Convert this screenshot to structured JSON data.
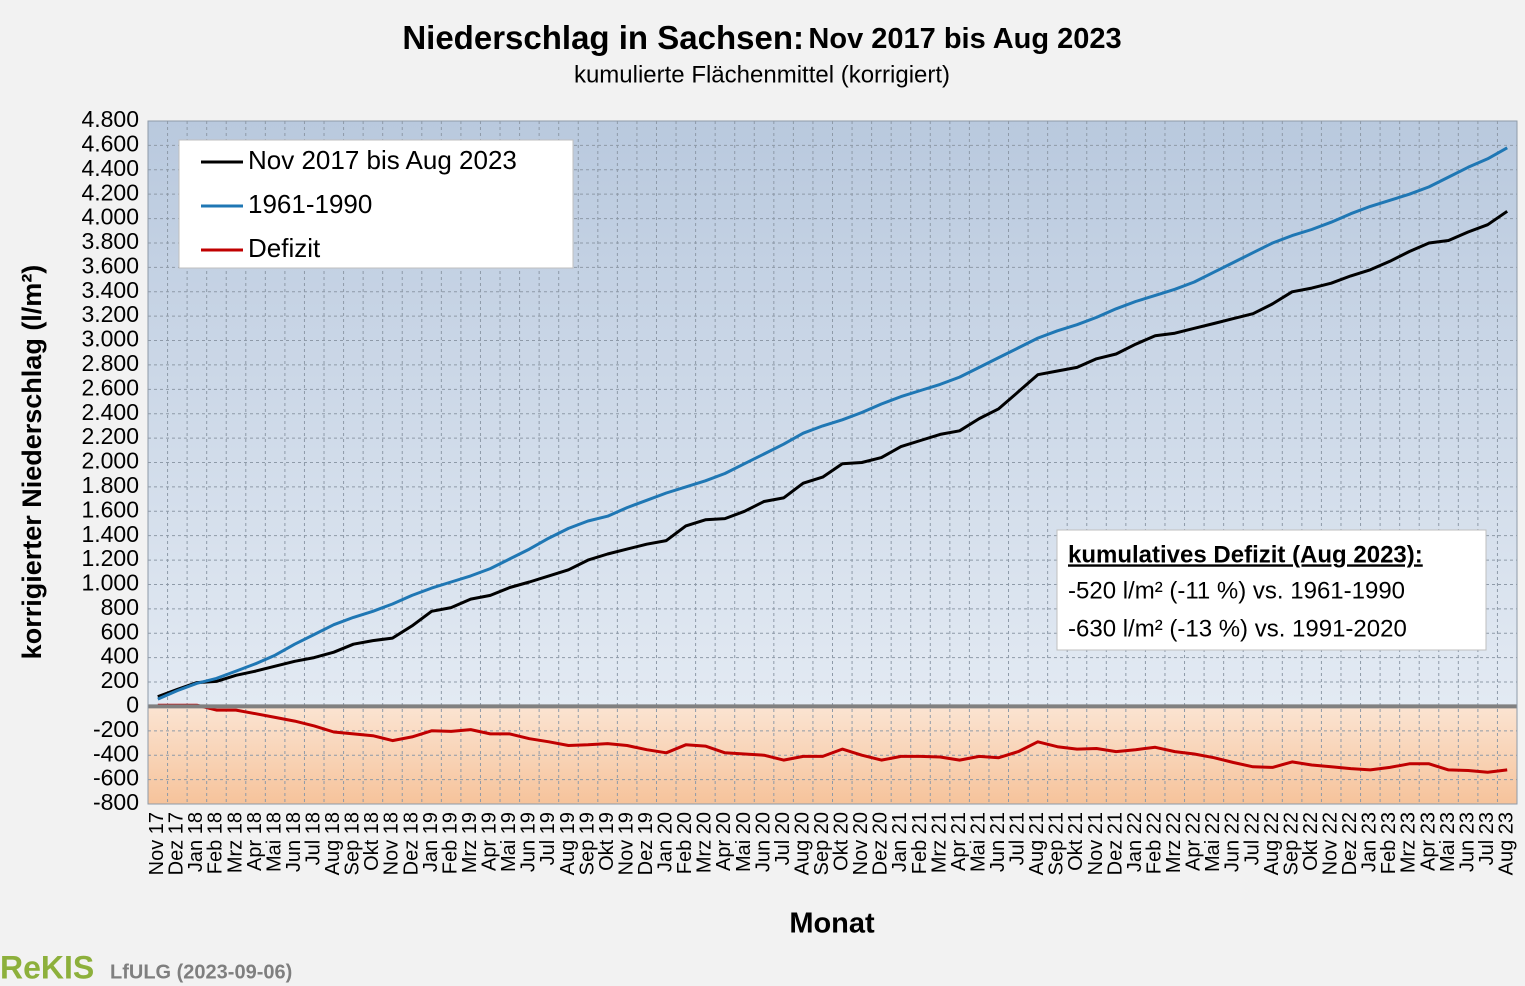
{
  "chart_data": {
    "type": "line",
    "title": "Niederschlag in Sachsen:",
    "title_period": "Nov 2017 bis Aug 2023",
    "subtitle": "kumulierte Flächenmittel (korrigiert)",
    "y_label": "korrigierter  Niederschlag  (l/m²)",
    "x_label": "Monat",
    "legend": "top-left",
    "grid": true,
    "categories": [
      "Nov 17",
      "Dez 17",
      "Jan 18",
      "Feb 18",
      "Mrz 18",
      "Apr 18",
      "Mai 18",
      "Jun 18",
      "Jul 18",
      "Aug 18",
      "Sep 18",
      "Okt 18",
      "Nov 18",
      "Dez 18",
      "Jan 19",
      "Feb 19",
      "Mrz 19",
      "Apr 19",
      "Mai 19",
      "Jun 19",
      "Jul 19",
      "Aug 19",
      "Sep 19",
      "Okt 19",
      "Nov 19",
      "Dez 19",
      "Jan 20",
      "Feb 20",
      "Mrz 20",
      "Apr 20",
      "Mai 20",
      "Jun 20",
      "Jul 20",
      "Aug 20",
      "Sep 20",
      "Okt 20",
      "Nov 20",
      "Dez 20",
      "Jan 21",
      "Feb 21",
      "Mrz 21",
      "Apr 21",
      "Mai 21",
      "Jun 21",
      "Jul 21",
      "Aug 21",
      "Sep 21",
      "Okt 21",
      "Nov 21",
      "Dez 21",
      "Jan 22",
      "Feb 22",
      "Mrz 22",
      "Apr 22",
      "Mai 22",
      "Jun 22",
      "Jul 22",
      "Aug 22",
      "Sep 22",
      "Okt 22",
      "Nov 22",
      "Dez 22",
      "Jan 23",
      "Feb 23",
      "Mrz 23",
      "Apr 23",
      "Mai 23",
      "Jun 23",
      "Jul 23",
      "Aug 23"
    ],
    "series": [
      {
        "name": "Nov 2017 bis Aug 2023",
        "color": "#000000",
        "values": [
          80,
          140,
          195,
          205,
          255,
          290,
          330,
          370,
          400,
          445,
          510,
          540,
          560,
          660,
          780,
          810,
          880,
          910,
          975,
          1020,
          1070,
          1120,
          1200,
          1250,
          1290,
          1330,
          1360,
          1480,
          1530,
          1540,
          1600,
          1680,
          1710,
          1830,
          1880,
          1990,
          2000,
          2040,
          2130,
          2180,
          2230,
          2260,
          2360,
          2440,
          2580,
          2720,
          2750,
          2780,
          2850,
          2890,
          2970,
          3040,
          3060,
          3100,
          3140,
          3180,
          3220,
          3300,
          3400,
          3430,
          3470,
          3530,
          3580,
          3650,
          3730,
          3800,
          3820,
          3890,
          3950,
          4060
        ]
      },
      {
        "name": "1961-1990",
        "color": "#1f77b4",
        "values": [
          60,
          130,
          190,
          230,
          290,
          350,
          420,
          510,
          590,
          670,
          730,
          780,
          840,
          910,
          970,
          1020,
          1070,
          1130,
          1210,
          1290,
          1380,
          1460,
          1520,
          1560,
          1630,
          1690,
          1750,
          1800,
          1850,
          1910,
          1990,
          2070,
          2150,
          2240,
          2300,
          2350,
          2410,
          2480,
          2540,
          2590,
          2640,
          2700,
          2780,
          2860,
          2940,
          3020,
          3080,
          3130,
          3190,
          3260,
          3320,
          3370,
          3420,
          3480,
          3560,
          3640,
          3720,
          3800,
          3860,
          3910,
          3970,
          4040,
          4100,
          4150,
          4200,
          4260,
          4340,
          4420,
          4490,
          4580
        ]
      },
      {
        "name": "Defizit",
        "color": "#c00000",
        "values": [
          10,
          10,
          10,
          -30,
          -30,
          -60,
          -90,
          -120,
          -160,
          -210,
          -225,
          -240,
          -280,
          -250,
          -200,
          -205,
          -190,
          -225,
          -225,
          -265,
          -290,
          -320,
          -315,
          -305,
          -320,
          -355,
          -380,
          -315,
          -325,
          -380,
          -390,
          -400,
          -440,
          -410,
          -410,
          -350,
          -400,
          -440,
          -410,
          -410,
          -415,
          -440,
          -410,
          -420,
          -370,
          -290,
          -330,
          -350,
          -345,
          -370,
          -355,
          -335,
          -370,
          -390,
          -420,
          -460,
          -495,
          -500,
          -455,
          -480,
          -495,
          -510,
          -520,
          -500,
          -470,
          -470,
          -520,
          -525,
          -540,
          -520
        ]
      }
    ],
    "ylim": [
      -800,
      4800
    ],
    "yticks": [
      -800,
      -600,
      -400,
      -200,
      0,
      200,
      400,
      600,
      800,
      {
        "value": 1000,
        "label": "1.000"
      },
      {
        "value": 1200,
        "label": "1.200"
      },
      {
        "value": 1400,
        "label": "1.400"
      },
      {
        "value": 1600,
        "label": "1.600"
      },
      {
        "value": 1800,
        "label": "1.800"
      },
      {
        "value": 2000,
        "label": "2.000"
      },
      {
        "value": 2200,
        "label": "2.200"
      },
      {
        "value": 2400,
        "label": "2.400"
      },
      {
        "value": 2600,
        "label": "2.600"
      },
      {
        "value": 2800,
        "label": "2.800"
      },
      {
        "value": 3000,
        "label": "3.000"
      },
      {
        "value": 3200,
        "label": "3.200"
      },
      {
        "value": 3400,
        "label": "3.400"
      },
      {
        "value": 3600,
        "label": "3.600"
      },
      {
        "value": 3800,
        "label": "3.800"
      },
      {
        "value": 4000,
        "label": "4.000"
      },
      {
        "value": 4200,
        "label": "4.200"
      },
      {
        "value": 4400,
        "label": "4.400"
      },
      {
        "value": 4600,
        "label": "4.600"
      },
      {
        "value": 4800,
        "label": "4.800"
      }
    ],
    "annotation": {
      "title": "kumulatives Defizit (Aug 2023):",
      "lines": [
        "-520 l/m² (-11 %) vs. 1961-1990",
        "-630 l/m² (-13 %) vs. 1991-2020"
      ]
    },
    "footer": {
      "logo": "ReKIS",
      "source": "LfULG (2023-09-06)"
    }
  }
}
